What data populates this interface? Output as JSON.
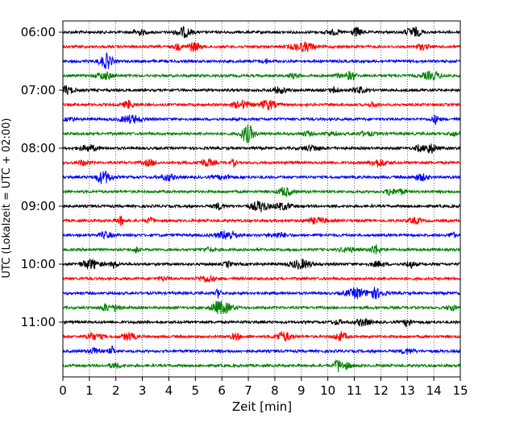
{
  "chart_data": {
    "type": "line",
    "title": "",
    "xlabel": "Zeit  [min]",
    "ylabel": "UTC (Lokalzeit = UTC + 02:00)",
    "xlim": [
      0,
      15
    ],
    "x_ticks": [
      "0",
      "1",
      "2",
      "3",
      "4",
      "5",
      "6",
      "7",
      "8",
      "9",
      "10",
      "11",
      "12",
      "13",
      "14",
      "15"
    ],
    "y_tick_labels": [
      "06:00",
      "07:00",
      "08:00",
      "09:00",
      "10:00",
      "11:00"
    ],
    "grid": "vertical dotted",
    "trace_colors": [
      "#000000",
      "#ff0000",
      "#0000ff",
      "#008000"
    ],
    "series": [
      {
        "start": "06:00",
        "color": "#000000"
      },
      {
        "start": "06:15",
        "color": "#ff0000"
      },
      {
        "start": "06:30",
        "color": "#0000ff"
      },
      {
        "start": "06:45",
        "color": "#008000"
      },
      {
        "start": "07:00",
        "color": "#000000"
      },
      {
        "start": "07:15",
        "color": "#ff0000"
      },
      {
        "start": "07:30",
        "color": "#0000ff"
      },
      {
        "start": "07:45",
        "color": "#008000"
      },
      {
        "start": "08:00",
        "color": "#000000"
      },
      {
        "start": "08:15",
        "color": "#ff0000"
      },
      {
        "start": "08:30",
        "color": "#0000ff"
      },
      {
        "start": "08:45",
        "color": "#008000"
      },
      {
        "start": "09:00",
        "color": "#000000"
      },
      {
        "start": "09:15",
        "color": "#ff0000"
      },
      {
        "start": "09:30",
        "color": "#0000ff"
      },
      {
        "start": "09:45",
        "color": "#008000"
      },
      {
        "start": "10:00",
        "color": "#000000"
      },
      {
        "start": "10:15",
        "color": "#ff0000"
      },
      {
        "start": "10:30",
        "color": "#0000ff"
      },
      {
        "start": "10:45",
        "color": "#008000"
      },
      {
        "start": "11:00",
        "color": "#000000"
      },
      {
        "start": "11:15",
        "color": "#ff0000"
      },
      {
        "start": "11:30",
        "color": "#0000ff"
      },
      {
        "start": "11:45",
        "color": "#008000"
      }
    ]
  }
}
